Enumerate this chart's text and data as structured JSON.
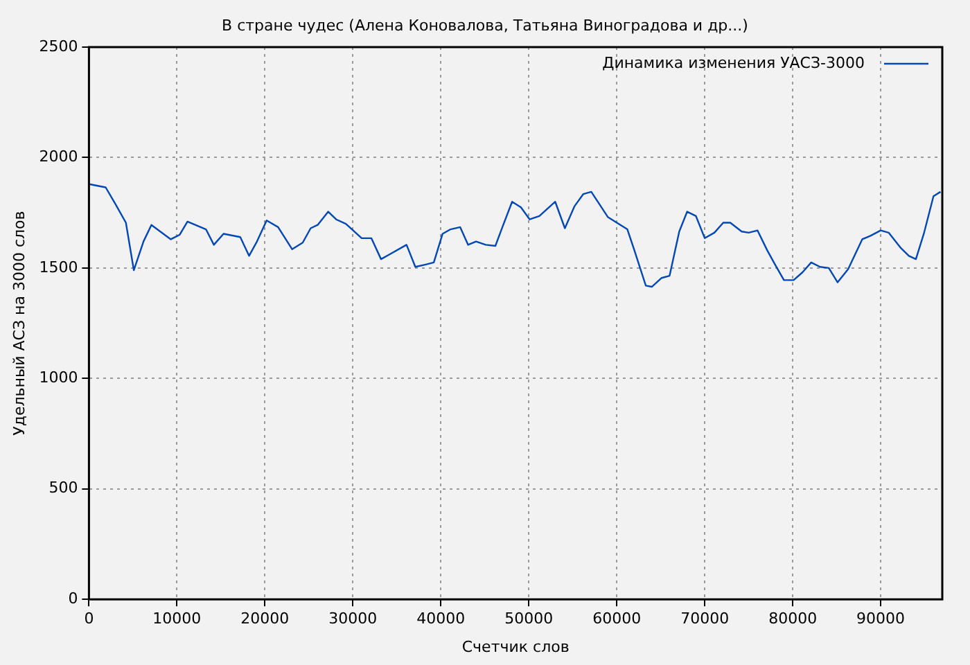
{
  "chart_data": {
    "type": "line",
    "title": "В стране чудес (Алена Коновалова, Татьяна Виноградова и др...)",
    "xlabel": "Счетчик слов",
    "ylabel": "Удельный АСЗ на 3000 слов",
    "x": [
      0,
      1900,
      3000,
      4200,
      5100,
      6200,
      7100,
      9300,
      10300,
      11200,
      13300,
      14200,
      15300,
      17200,
      18200,
      19100,
      20200,
      21500,
      23100,
      24300,
      25200,
      26000,
      27200,
      28100,
      29200,
      31000,
      32100,
      33200,
      34100,
      36100,
      37100,
      38200,
      39200,
      40200,
      41100,
      42200,
      43100,
      44000,
      45100,
      46200,
      46900,
      48100,
      49100,
      50100,
      51200,
      53000,
      54100,
      55200,
      56200,
      57100,
      59000,
      61200,
      62000,
      63300,
      64000,
      65100,
      66000,
      67100,
      68000,
      69000,
      70000,
      71100,
      72100,
      72900,
      74200,
      75000,
      76000,
      77100,
      78000,
      79000,
      80100,
      81100,
      82100,
      83100,
      84100,
      85100,
      86300,
      87900,
      88800,
      90000,
      90900,
      92300,
      93200,
      94000,
      94900,
      96000,
      96800
    ],
    "series": [
      {
        "name": "Динамика изменения УАСЗ-3000",
        "color": "#0047b3",
        "values": [
          1880,
          1865,
          1790,
          1705,
          1490,
          1620,
          1695,
          1630,
          1650,
          1710,
          1675,
          1605,
          1655,
          1640,
          1555,
          1620,
          1715,
          1685,
          1585,
          1615,
          1680,
          1695,
          1755,
          1720,
          1700,
          1635,
          1635,
          1540,
          1560,
          1605,
          1505,
          1515,
          1525,
          1655,
          1675,
          1685,
          1605,
          1620,
          1605,
          1600,
          1675,
          1800,
          1775,
          1720,
          1735,
          1800,
          1680,
          1780,
          1835,
          1845,
          1730,
          1675,
          1580,
          1420,
          1415,
          1455,
          1465,
          1665,
          1755,
          1735,
          1635,
          1660,
          1705,
          1705,
          1665,
          1660,
          1670,
          1580,
          1515,
          1445,
          1445,
          1480,
          1525,
          1505,
          1500,
          1435,
          1495,
          1630,
          1645,
          1670,
          1660,
          1590,
          1555,
          1540,
          1655,
          1825,
          1845
        ]
      }
    ],
    "xlim": [
      0,
      97000
    ],
    "xticks": [
      0,
      10000,
      20000,
      30000,
      40000,
      50000,
      60000,
      70000,
      80000,
      90000
    ],
    "ylim": [
      0,
      2500
    ],
    "yticks": [
      0,
      500,
      1000,
      1500,
      2000,
      2500
    ],
    "grid": true,
    "legend": "top right",
    "marker": "none",
    "line_style": "solid"
  }
}
